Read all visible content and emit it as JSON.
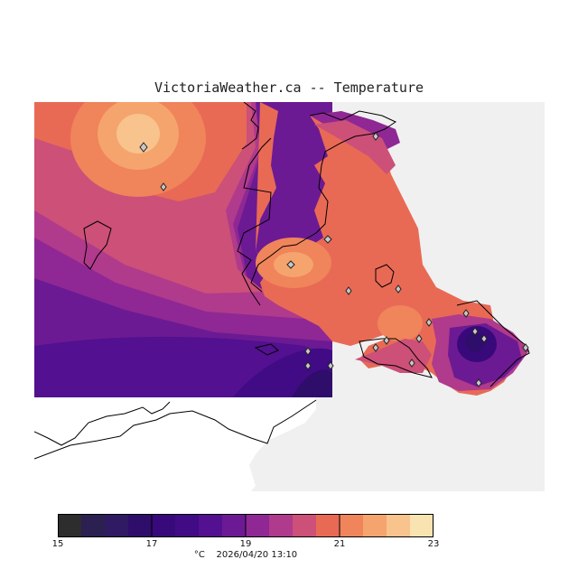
{
  "title": "VictoriaWeather.ca -- Temperature",
  "legend": {
    "ticks": [
      "15",
      "17",
      "19",
      "21",
      "23"
    ],
    "colors": [
      "#2d2d2d",
      "#2b2050",
      "#2f1a63",
      "#2e0d6b",
      "#38097a",
      "#400b85",
      "#531090",
      "#6c1a93",
      "#8f2894",
      "#b03a8c",
      "#cc5078",
      "#e86a55",
      "#f0845a",
      "#f5a46e",
      "#f8c38c",
      "#f9e3b0"
    ]
  },
  "footer": {
    "unit": "°C",
    "timestamp": "2026/04/20 13:10"
  },
  "map": {
    "background_color": "#f0f0f0",
    "unmapped_color": "#ffffff",
    "station_marker": "diamond-icon"
  }
}
